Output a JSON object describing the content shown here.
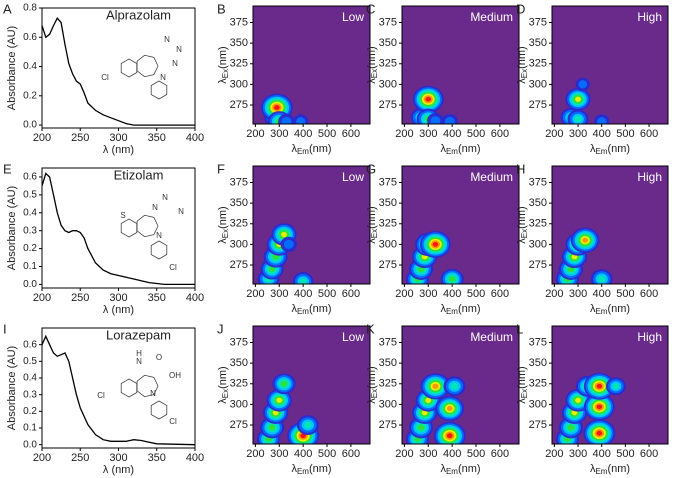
{
  "chart_data": [
    {
      "type": "line",
      "panel": "A",
      "title": "Alprazolam",
      "xlabel": "λ (nm)",
      "ylabel": "Absorbance (AU)",
      "color": "#000000",
      "x": [
        200,
        205,
        210,
        215,
        220,
        225,
        230,
        235,
        240,
        245,
        250,
        255,
        260,
        270,
        280,
        290,
        300,
        310,
        320,
        350,
        400
      ],
      "values": [
        0.68,
        0.6,
        0.62,
        0.68,
        0.73,
        0.7,
        0.55,
        0.42,
        0.35,
        0.3,
        0.28,
        0.22,
        0.15,
        0.1,
        0.07,
        0.05,
        0.03,
        0.01,
        0.0,
        0.0,
        0.0
      ],
      "xlim": [
        200,
        400
      ],
      "xticks": [
        200,
        250,
        300,
        350,
        400
      ],
      "ylim": [
        -0.02,
        0.8
      ],
      "yticks": [
        {
          "value": 0,
          "label": "0.0"
        },
        {
          "value": 0.2,
          "label": "0.2"
        },
        {
          "value": 0.4,
          "label": "0.4"
        },
        {
          "value": 0.6,
          "label": "0.6"
        },
        {
          "value": 0.8,
          "label": "0.8"
        }
      ],
      "structure_labels": [
        "N",
        "N",
        "N",
        "Cl",
        "N"
      ]
    },
    {
      "type": "contour",
      "panel": "B",
      "title": "Low",
      "xlabel": "λ",
      "xlabel_sub": "Em",
      "xlabel_unit": "(nm)",
      "ylabel": "λ",
      "ylabel_sub": "Ex",
      "ylabel_unit": "(nm)",
      "background": "#6a2a8c",
      "xlim": [
        190,
        680
      ],
      "xticks": [
        200,
        300,
        400,
        500,
        600
      ],
      "ylim": [
        252,
        395
      ],
      "yticks": [
        275,
        300,
        325,
        350,
        375
      ],
      "peaks": {
        "em": [
          280,
          290,
          300,
          330,
          390
        ],
        "ex": [
          260,
          272,
          255,
          255,
          255
        ],
        "intensity": [
          0.5,
          1.0,
          0.6,
          0.3,
          0.25
        ]
      }
    },
    {
      "type": "contour",
      "panel": "C",
      "title": "Medium",
      "xlabel": "λ",
      "xlabel_sub": "Em",
      "xlabel_unit": "(nm)",
      "ylabel": "λ",
      "ylabel_sub": "Ex",
      "ylabel_unit": "(nm)",
      "background": "#6a2a8c",
      "xlim": [
        190,
        680
      ],
      "xticks": [
        200,
        300,
        400,
        500,
        600
      ],
      "ylim": [
        252,
        395
      ],
      "yticks": [
        275,
        300,
        325,
        350,
        375
      ],
      "peaks": {
        "em": [
          270,
          300,
          300,
          390,
          330
        ],
        "ex": [
          260,
          282,
          258,
          255,
          256
        ],
        "intensity": [
          0.5,
          0.95,
          0.6,
          0.3,
          0.3
        ]
      }
    },
    {
      "type": "contour",
      "panel": "D",
      "title": "High",
      "xlabel": "λ",
      "xlabel_sub": "Em",
      "xlabel_unit": "(nm)",
      "ylabel": "λ",
      "ylabel_sub": "Ex",
      "ylabel_unit": "(nm)",
      "background": "#6a2a8c",
      "xlim": [
        190,
        680
      ],
      "xticks": [
        200,
        300,
        400,
        500,
        600
      ],
      "ylim": [
        252,
        395
      ],
      "yticks": [
        275,
        300,
        325,
        350,
        375
      ],
      "peaks": {
        "em": [
          270,
          300,
          300,
          320,
          400
        ],
        "ex": [
          260,
          282,
          258,
          300,
          255
        ],
        "intensity": [
          0.5,
          0.7,
          0.5,
          0.2,
          0.25
        ]
      }
    },
    {
      "type": "line",
      "panel": "E",
      "title": "Etizolam",
      "xlabel": "λ (nm)",
      "ylabel": "Absorbance (AU)",
      "color": "#000000",
      "x": [
        200,
        205,
        210,
        215,
        220,
        225,
        230,
        235,
        240,
        245,
        250,
        255,
        260,
        270,
        280,
        290,
        300,
        310,
        320,
        340,
        360,
        400
      ],
      "values": [
        0.55,
        0.62,
        0.6,
        0.5,
        0.4,
        0.33,
        0.3,
        0.29,
        0.3,
        0.3,
        0.29,
        0.26,
        0.2,
        0.12,
        0.08,
        0.06,
        0.05,
        0.04,
        0.03,
        0.01,
        0.0,
        0.0
      ],
      "xlim": [
        200,
        400
      ],
      "xticks": [
        200,
        250,
        300,
        350,
        400
      ],
      "ylim": [
        -0.02,
        0.65
      ],
      "yticks": [
        {
          "value": 0,
          "label": "0.0"
        },
        {
          "value": 0.1,
          "label": "0.1"
        },
        {
          "value": 0.2,
          "label": "0.2"
        },
        {
          "value": 0.3,
          "label": "0.3"
        },
        {
          "value": 0.4,
          "label": "0.4"
        },
        {
          "value": 0.5,
          "label": "0.5"
        },
        {
          "value": 0.6,
          "label": "0.6"
        }
      ],
      "structure_labels": [
        "S",
        "N",
        "N",
        "N",
        "N",
        "Cl"
      ]
    },
    {
      "type": "contour",
      "panel": "F",
      "title": "Low",
      "xlabel": "λ",
      "xlabel_sub": "Em",
      "xlabel_unit": "(nm)",
      "ylabel": "λ",
      "ylabel_sub": "Ex",
      "ylabel_unit": "(nm)",
      "background": "#6a2a8c",
      "xlim": [
        190,
        680
      ],
      "xticks": [
        200,
        300,
        400,
        500,
        600
      ],
      "ylim": [
        252,
        395
      ],
      "yticks": [
        275,
        300,
        325,
        350,
        375
      ],
      "peaks": {
        "em": [
          255,
          270,
          285,
          300,
          320,
          400,
          340
        ],
        "ex": [
          258,
          270,
          285,
          300,
          312,
          255,
          300
        ],
        "intensity": [
          0.55,
          0.6,
          0.65,
          0.7,
          0.7,
          0.5,
          0.3
        ]
      }
    },
    {
      "type": "contour",
      "panel": "G",
      "title": "Medium",
      "xlabel": "λ",
      "xlabel_sub": "Em",
      "xlabel_unit": "(nm)",
      "ylabel": "λ",
      "ylabel_sub": "Ex",
      "ylabel_unit": "(nm)",
      "background": "#6a2a8c",
      "xlim": [
        190,
        680
      ],
      "xticks": [
        200,
        300,
        400,
        500,
        600
      ],
      "ylim": [
        252,
        395
      ],
      "yticks": [
        275,
        300,
        325,
        350,
        375
      ],
      "peaks": {
        "em": [
          255,
          270,
          285,
          300,
          330,
          400
        ],
        "ex": [
          258,
          270,
          285,
          300,
          300,
          258
        ],
        "intensity": [
          0.6,
          0.65,
          0.7,
          0.75,
          0.95,
          0.6
        ]
      }
    },
    {
      "type": "contour",
      "panel": "H",
      "title": "High",
      "xlabel": "λ",
      "xlabel_sub": "Em",
      "xlabel_unit": "(nm)",
      "ylabel": "λ",
      "ylabel_sub": "Ex",
      "ylabel_unit": "(nm)",
      "background": "#6a2a8c",
      "xlim": [
        190,
        680
      ],
      "xticks": [
        200,
        300,
        400,
        500,
        600
      ],
      "ylim": [
        252,
        395
      ],
      "yticks": [
        275,
        300,
        325,
        350,
        375
      ],
      "peaks": {
        "em": [
          255,
          270,
          285,
          300,
          330,
          400
        ],
        "ex": [
          258,
          270,
          285,
          300,
          305,
          258
        ],
        "intensity": [
          0.6,
          0.65,
          0.7,
          0.7,
          0.85,
          0.55
        ]
      }
    },
    {
      "type": "line",
      "panel": "I",
      "title": "Lorazepam",
      "xlabel": "λ (nm)",
      "ylabel": "Absorbance (AU)",
      "color": "#000000",
      "x": [
        200,
        205,
        210,
        215,
        220,
        225,
        230,
        235,
        240,
        245,
        250,
        260,
        270,
        280,
        290,
        300,
        310,
        320,
        330,
        340,
        350,
        400
      ],
      "values": [
        0.6,
        0.65,
        0.6,
        0.55,
        0.53,
        0.54,
        0.55,
        0.5,
        0.4,
        0.3,
        0.22,
        0.12,
        0.06,
        0.03,
        0.02,
        0.02,
        0.02,
        0.03,
        0.025,
        0.015,
        0.005,
        0.0
      ],
      "xlim": [
        200,
        400
      ],
      "xticks": [
        200,
        250,
        300,
        350,
        400
      ],
      "ylim": [
        -0.02,
        0.7
      ],
      "yticks": [
        {
          "value": 0,
          "label": "0.0"
        },
        {
          "value": 0.1,
          "label": "0.1"
        },
        {
          "value": 0.2,
          "label": "0.2"
        },
        {
          "value": 0.3,
          "label": "0.3"
        },
        {
          "value": 0.4,
          "label": "0.4"
        },
        {
          "value": 0.5,
          "label": "0.5"
        },
        {
          "value": 0.6,
          "label": "0.6"
        }
      ],
      "structure_labels": [
        "H",
        "N",
        "O",
        "OH",
        "Cl",
        "N",
        "Cl"
      ]
    },
    {
      "type": "contour",
      "panel": "J",
      "title": "Low",
      "xlabel": "λ",
      "xlabel_sub": "Em",
      "xlabel_unit": "(nm)",
      "ylabel": "λ",
      "ylabel_sub": "Ex",
      "ylabel_unit": "(nm)",
      "background": "#6a2a8c",
      "xlim": [
        190,
        680
      ],
      "xticks": [
        200,
        300,
        400,
        500,
        600
      ],
      "ylim": [
        252,
        395
      ],
      "yticks": [
        275,
        300,
        325,
        350,
        375
      ],
      "peaks": {
        "em": [
          255,
          270,
          285,
          300,
          320,
          400,
          420
        ],
        "ex": [
          258,
          272,
          290,
          305,
          325,
          262,
          275
        ],
        "intensity": [
          0.6,
          0.65,
          0.7,
          0.7,
          0.6,
          1.0,
          0.55
        ]
      }
    },
    {
      "type": "contour",
      "panel": "K",
      "title": "Medium",
      "xlabel": "λ",
      "xlabel_sub": "Em",
      "xlabel_unit": "(nm)",
      "ylabel": "λ",
      "ylabel_sub": "Ex",
      "ylabel_unit": "(nm)",
      "background": "#6a2a8c",
      "xlim": [
        190,
        680
      ],
      "xticks": [
        200,
        300,
        400,
        500,
        600
      ],
      "ylim": [
        252,
        395
      ],
      "yticks": [
        275,
        300,
        325,
        350,
        375
      ],
      "peaks": {
        "em": [
          255,
          270,
          285,
          300,
          330,
          390,
          390,
          410
        ],
        "ex": [
          258,
          272,
          290,
          305,
          322,
          262,
          295,
          322
        ],
        "intensity": [
          0.6,
          0.65,
          0.7,
          0.7,
          0.9,
          1.0,
          0.85,
          0.55
        ]
      }
    },
    {
      "type": "contour",
      "panel": "L",
      "title": "High",
      "xlabel": "λ",
      "xlabel_sub": "Em",
      "xlabel_unit": "(nm)",
      "ylabel": "λ",
      "ylabel_sub": "Ex",
      "ylabel_unit": "(nm)",
      "background": "#6a2a8c",
      "xlim": [
        190,
        680
      ],
      "xticks": [
        200,
        300,
        400,
        500,
        600
      ],
      "ylim": [
        252,
        395
      ],
      "yticks": [
        275,
        300,
        325,
        350,
        375
      ],
      "peaks": {
        "em": [
          255,
          270,
          285,
          300,
          340,
          390,
          390,
          390,
          460
        ],
        "ex": [
          258,
          272,
          290,
          305,
          322,
          265,
          297,
          322,
          322
        ],
        "intensity": [
          0.6,
          0.65,
          0.7,
          0.7,
          0.6,
          1.0,
          0.95,
          0.95,
          0.45
        ]
      }
    }
  ]
}
